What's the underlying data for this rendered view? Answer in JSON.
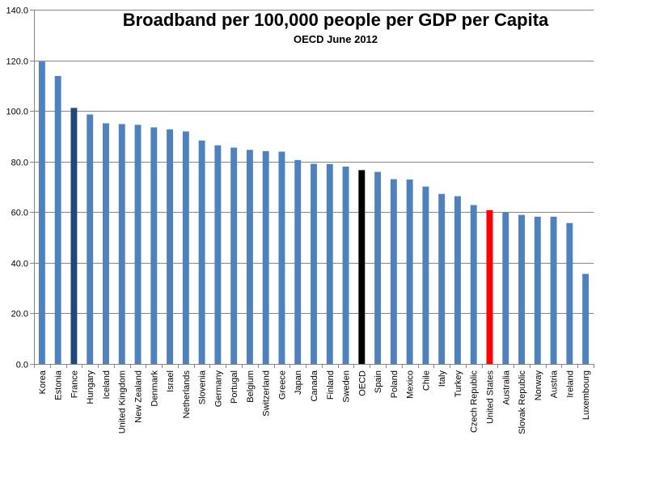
{
  "chart_data": {
    "type": "bar",
    "title": "Broadband per 100,000 people per GDP per Capita",
    "subtitle": "OECD June 2012",
    "xlabel": "",
    "ylabel": "",
    "ylim": [
      0,
      140
    ],
    "yticks": [
      "0.0",
      "20.0",
      "40.0",
      "60.0",
      "80.0",
      "100.0",
      "120.0",
      "140.0"
    ],
    "grid": true,
    "legend": "none",
    "categories": [
      "Korea",
      "Estonia",
      "France",
      "Hungary",
      "Iceland",
      "United Kingdom",
      "New Zealand",
      "Denmark",
      "Israel",
      "Netherlands",
      "Slovenia",
      "Germany",
      "Portugal",
      "Belgium",
      "Switzerland",
      "Greece",
      "Japan",
      "Canada",
      "Finland",
      "Sweden",
      "OECD",
      "Spain",
      "Poland",
      "Mexico",
      "Chile",
      "Italy",
      "Turkey",
      "Czech Republic",
      "United States",
      "Australia",
      "Slovak Republic",
      "Norway",
      "Austria",
      "Ireland",
      "Luxembourg"
    ],
    "values": [
      119.5,
      113.8,
      101.2,
      98.6,
      95.1,
      94.8,
      94.5,
      93.5,
      92.7,
      91.9,
      88.3,
      86.4,
      85.5,
      84.6,
      84.1,
      83.9,
      80.6,
      79.1,
      79.0,
      78.0,
      76.6,
      75.9,
      73.0,
      72.9,
      70.1,
      67.2,
      66.3,
      62.8,
      60.8,
      59.8,
      58.9,
      58.2,
      58.2,
      55.7,
      35.6
    ],
    "colors": {
      "default": "#4F81BD",
      "France": "#1F497D",
      "OECD": "#000000",
      "United States": "#FF0000"
    }
  }
}
